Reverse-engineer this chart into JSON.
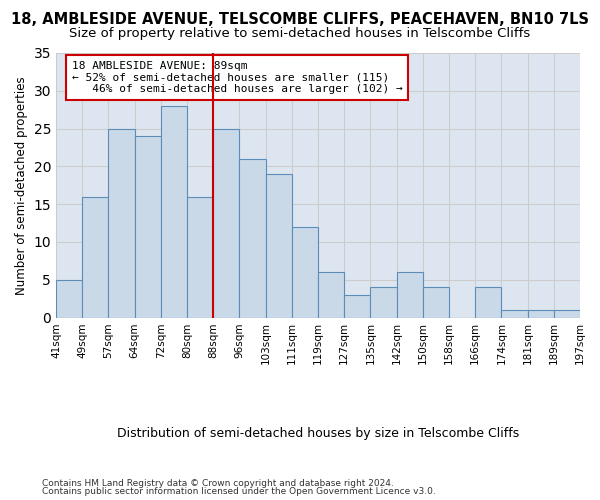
{
  "title1": "18, AMBLESIDE AVENUE, TELSCOMBE CLIFFS, PEACEHAVEN, BN10 7LS",
  "title2": "Size of property relative to semi-detached houses in Telscombe Cliffs",
  "xlabel": "Distribution of semi-detached houses by size in Telscombe Cliffs",
  "ylabel": "Number of semi-detached properties",
  "footer1": "Contains HM Land Registry data © Crown copyright and database right 2024.",
  "footer2": "Contains public sector information licensed under the Open Government Licence v3.0.",
  "tick_labels": [
    "41sqm",
    "49sqm",
    "57sqm",
    "64sqm",
    "72sqm",
    "80sqm",
    "88sqm",
    "96sqm",
    "103sqm",
    "111sqm",
    "119sqm",
    "127sqm",
    "135sqm",
    "142sqm",
    "150sqm",
    "158sqm",
    "166sqm",
    "174sqm",
    "181sqm",
    "189sqm",
    "197sqm"
  ],
  "bar_heights": [
    5,
    16,
    25,
    24,
    28,
    16,
    25,
    21,
    19,
    12,
    6,
    3,
    4,
    6,
    4,
    0,
    4,
    1,
    1,
    1
  ],
  "bar_color": "#c9d9e8",
  "bar_edge_color": "#5b8db8",
  "property_size_index": 6,
  "red_line_color": "#cc0000",
  "annotation_line1": "18 AMBLESIDE AVENUE: 89sqm",
  "annotation_line2": "← 52% of semi-detached houses are smaller (115)",
  "annotation_line3": "   46% of semi-detached houses are larger (102) →",
  "annotation_box_color": "#ffffff",
  "annotation_box_edge": "#cc0000",
  "ylim": [
    0,
    35
  ],
  "yticks": [
    0,
    5,
    10,
    15,
    20,
    25,
    30,
    35
  ],
  "grid_color": "#cccccc",
  "background_color": "#dde6f0",
  "title1_fontsize": 10.5,
  "title2_fontsize": 9.5,
  "xlabel_fontsize": 9,
  "ylabel_fontsize": 8.5
}
